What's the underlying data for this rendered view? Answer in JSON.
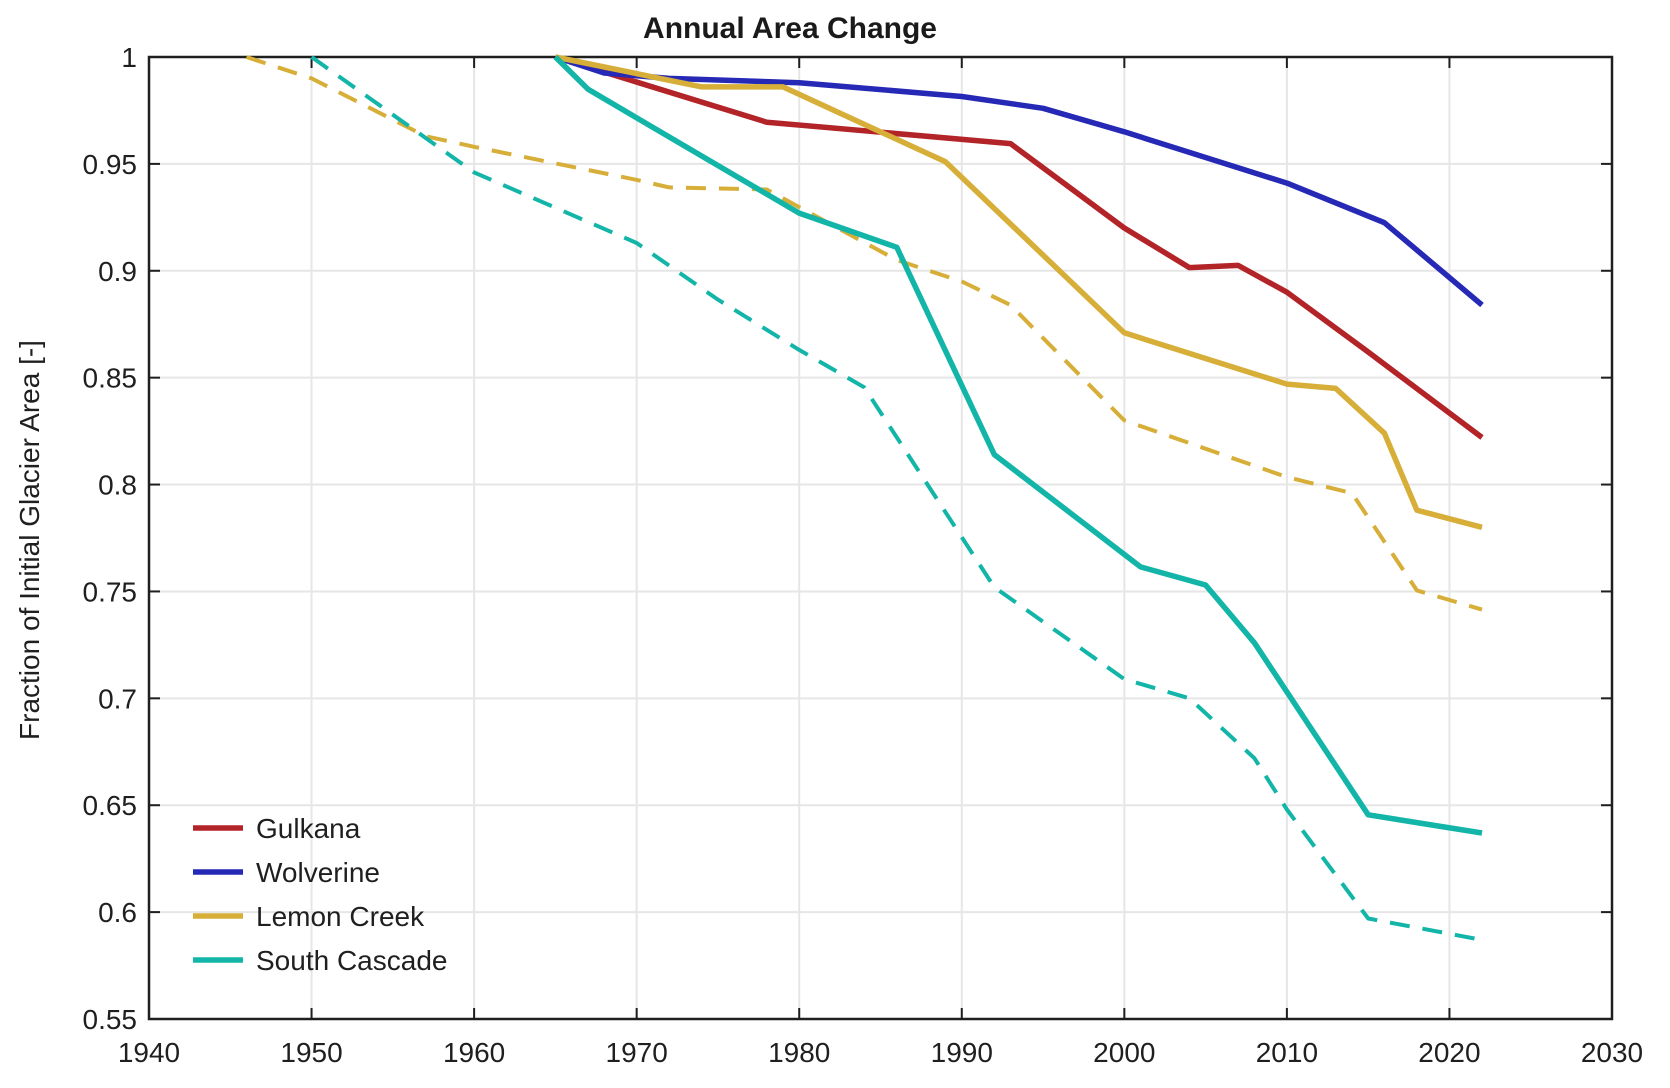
{
  "chart_data": {
    "type": "line",
    "title": "Annual Area Change",
    "xlabel": "",
    "ylabel": "Fraction of Initial Glacier Area [-]",
    "xlim": [
      1940,
      2030
    ],
    "ylim": [
      0.55,
      1.0
    ],
    "x_ticks": [
      1940,
      1950,
      1960,
      1970,
      1980,
      1990,
      2000,
      2010,
      2020,
      2030
    ],
    "x_tick_labels": [
      "1940",
      "1950",
      "1960",
      "1970",
      "1980",
      "1990",
      "2000",
      "2010",
      "2020",
      "2030"
    ],
    "y_ticks": [
      0.55,
      0.6,
      0.65,
      0.7,
      0.75,
      0.8,
      0.85,
      0.9,
      0.95,
      1.0
    ],
    "y_tick_labels": [
      "0.55",
      "0.6",
      "0.65",
      "0.7",
      "0.75",
      "0.8",
      "0.85",
      "0.9",
      "0.95",
      "1"
    ],
    "grid": true,
    "legend_position": "lower-left",
    "legend": [
      "Gulkana",
      "Wolverine",
      "Lemon Creek",
      "South Cascade"
    ],
    "series": [
      {
        "name": "Gulkana",
        "color": "#b32428",
        "style": "solid",
        "in_legend": true,
        "points": [
          [
            1965,
            1.0
          ],
          [
            1978,
            0.9695
          ],
          [
            1993,
            0.9595
          ],
          [
            2000,
            0.92
          ],
          [
            2004,
            0.9015
          ],
          [
            2007,
            0.9025
          ],
          [
            2010,
            0.89
          ],
          [
            2015,
            0.862
          ],
          [
            2022,
            0.822
          ]
        ]
      },
      {
        "name": "Wolverine",
        "color": "#2629b5",
        "style": "solid",
        "in_legend": true,
        "points": [
          [
            1965,
            1.0
          ],
          [
            1968,
            0.9925
          ],
          [
            1972,
            0.99
          ],
          [
            1980,
            0.988
          ],
          [
            1990,
            0.9815
          ],
          [
            1995,
            0.976
          ],
          [
            2000,
            0.965
          ],
          [
            2010,
            0.941
          ],
          [
            2016,
            0.9225
          ],
          [
            2022,
            0.884
          ]
        ]
      },
      {
        "name": "Lemon Creek",
        "color": "#d6ae38",
        "style": "solid",
        "in_legend": true,
        "points": [
          [
            1965,
            1.0
          ],
          [
            1974,
            0.986
          ],
          [
            1979,
            0.986
          ],
          [
            1989,
            0.951
          ],
          [
            2000,
            0.871
          ],
          [
            2010,
            0.847
          ],
          [
            2013,
            0.845
          ],
          [
            2016,
            0.824
          ],
          [
            2018,
            0.788
          ],
          [
            2022,
            0.78
          ]
        ]
      },
      {
        "name": "South Cascade",
        "color": "#12b5a7",
        "style": "solid",
        "in_legend": true,
        "points": [
          [
            1965,
            1.0
          ],
          [
            1967,
            0.985
          ],
          [
            1970,
            0.9715
          ],
          [
            1980,
            0.927
          ],
          [
            1986,
            0.911
          ],
          [
            1992,
            0.814
          ],
          [
            2001,
            0.7615
          ],
          [
            2005,
            0.753
          ],
          [
            2008,
            0.726
          ],
          [
            2015,
            0.6455
          ],
          [
            2022,
            0.637
          ]
        ]
      },
      {
        "name": "Lemon Creek (dashed)",
        "color": "#d6ae38",
        "style": "dashed",
        "in_legend": false,
        "points": [
          [
            1946,
            1.0
          ],
          [
            1950,
            0.99
          ],
          [
            1957,
            0.963
          ],
          [
            1960,
            0.958
          ],
          [
            1970,
            0.9425
          ],
          [
            1972,
            0.939
          ],
          [
            1978,
            0.938
          ],
          [
            1986,
            0.905
          ],
          [
            1990,
            0.895
          ],
          [
            1993,
            0.884
          ],
          [
            2000,
            0.83
          ],
          [
            2010,
            0.8035
          ],
          [
            2014,
            0.796
          ],
          [
            2018,
            0.7505
          ],
          [
            2022,
            0.7415
          ]
        ]
      },
      {
        "name": "South Cascade (dashed)",
        "color": "#12b5a7",
        "style": "dashed",
        "in_legend": false,
        "points": [
          [
            1950,
            1.0
          ],
          [
            1960,
            0.946
          ],
          [
            1970,
            0.913
          ],
          [
            1975,
            0.8865
          ],
          [
            1980,
            0.863
          ],
          [
            1984,
            0.8455
          ],
          [
            1992,
            0.752
          ],
          [
            2000,
            0.709
          ],
          [
            2004,
            0.7
          ],
          [
            2008,
            0.672
          ],
          [
            2010,
            0.648
          ],
          [
            2015,
            0.597
          ],
          [
            2022,
            0.587
          ]
        ]
      }
    ],
    "colors": {
      "axis": "#1f1f1f",
      "grid": "#e6e6e6",
      "background": "#ffffff"
    }
  }
}
